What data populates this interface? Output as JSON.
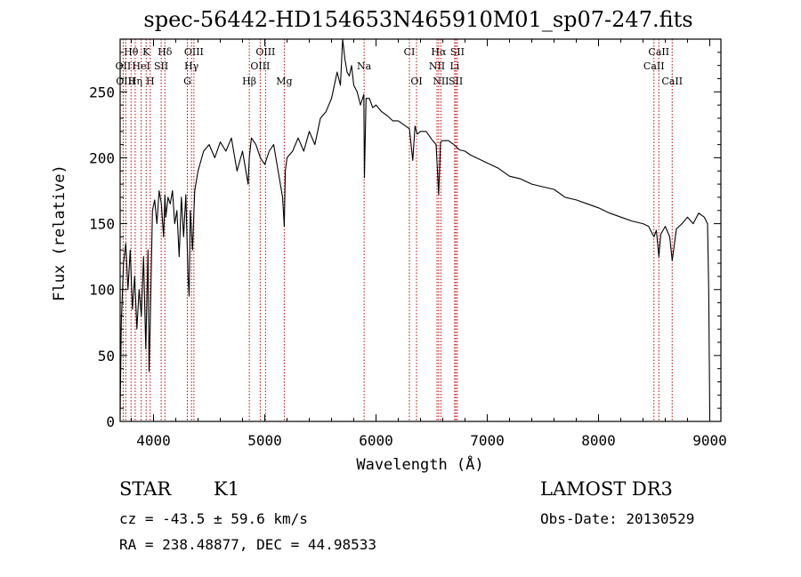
{
  "chart_data": {
    "type": "line",
    "title": "spec-56442-HD154653N465910M01_sp07-247.fits",
    "xlabel": "Wavelength (Å)",
    "ylabel": "Flux (relative)",
    "xlim": [
      3700,
      9100
    ],
    "ylim": [
      0,
      290
    ],
    "xticks": [
      4000,
      5000,
      6000,
      7000,
      8000,
      9000
    ],
    "yticks": [
      0,
      50,
      100,
      150,
      200,
      250
    ],
    "series": [
      {
        "x": [
          3700,
          3710,
          3730,
          3750,
          3770,
          3790,
          3810,
          3830,
          3850,
          3870,
          3890,
          3910,
          3930,
          3950,
          3960,
          3970,
          3990,
          4010,
          4030,
          4050,
          4070,
          4090,
          4102,
          4110,
          4130,
          4150,
          4170,
          4190,
          4210,
          4230,
          4250,
          4270,
          4290,
          4310,
          4320,
          4330,
          4350,
          4370,
          4400,
          4450,
          4500,
          4550,
          4600,
          4650,
          4700,
          4750,
          4800,
          4850,
          4861,
          4880,
          4920,
          4960,
          5000,
          5040,
          5080,
          5120,
          5160,
          5175,
          5185,
          5200,
          5250,
          5300,
          5350,
          5400,
          5450,
          5500,
          5550,
          5600,
          5650,
          5680,
          5700,
          5720,
          5740,
          5760,
          5780,
          5800,
          5830,
          5860,
          5890,
          5896,
          5910,
          5940,
          5970,
          6000,
          6050,
          6100,
          6150,
          6200,
          6250,
          6300,
          6330,
          6350,
          6370,
          6400,
          6450,
          6500,
          6540,
          6563,
          6580,
          6600,
          6650,
          6700,
          6750,
          6800,
          6850,
          6900,
          6950,
          7000,
          7100,
          7200,
          7300,
          7400,
          7500,
          7600,
          7700,
          7800,
          7900,
          8000,
          8100,
          8200,
          8300,
          8400,
          8450,
          8498,
          8520,
          8542,
          8560,
          8600,
          8640,
          8662,
          8700,
          8750,
          8800,
          8850,
          8900,
          8950,
          8980,
          8990,
          9000
        ],
        "y": [
          5,
          75,
          120,
          135,
          100,
          130,
          85,
          110,
          70,
          100,
          80,
          125,
          55,
          130,
          38,
          75,
          160,
          168,
          150,
          175,
          165,
          140,
          172,
          155,
          170,
          165,
          175,
          150,
          160,
          125,
          170,
          140,
          172,
          110,
          95,
          160,
          130,
          175,
          190,
          205,
          210,
          200,
          212,
          205,
          215,
          190,
          205,
          180,
          200,
          215,
          210,
          200,
          195,
          205,
          210,
          190,
          170,
          148,
          190,
          200,
          205,
          215,
          205,
          220,
          210,
          230,
          235,
          245,
          265,
          255,
          290,
          275,
          265,
          262,
          270,
          255,
          250,
          240,
          248,
          185,
          245,
          245,
          238,
          240,
          235,
          232,
          228,
          228,
          225,
          222,
          198,
          224,
          218,
          220,
          220,
          214,
          210,
          172,
          212,
          213,
          213,
          210,
          206,
          205,
          202,
          200,
          198,
          196,
          192,
          186,
          184,
          180,
          178,
          176,
          170,
          168,
          165,
          162,
          158,
          155,
          152,
          150,
          148,
          140,
          145,
          125,
          142,
          148,
          140,
          122,
          146,
          150,
          155,
          150,
          158,
          155,
          150,
          100,
          5
        ]
      }
    ],
    "lines_top": [
      {
        "label": "Hθ",
        "x": 3798
      },
      {
        "label": "K",
        "x": 3934
      },
      {
        "label": "Hδ",
        "x": 4102
      },
      {
        "label": "OIII",
        "x": 4363
      },
      {
        "label": "OIII",
        "x": 5007
      },
      {
        "label": "CI",
        "x": 6300
      },
      {
        "label": "Hα",
        "x": 6563
      },
      {
        "label": "SII",
        "x": 6731
      },
      {
        "label": "CaII",
        "x": 8542
      }
    ],
    "lines_mid": [
      {
        "label": "OII",
        "x": 3727
      },
      {
        "label": "HeI",
        "x": 3889
      },
      {
        "label": "SII",
        "x": 4069
      },
      {
        "label": "Hγ",
        "x": 4341
      },
      {
        "label": "OIII",
        "x": 4959
      },
      {
        "label": "Na",
        "x": 5893
      },
      {
        "label": "NII",
        "x": 6548
      },
      {
        "label": "Li",
        "x": 6707
      },
      {
        "label": "CaII",
        "x": 8498
      }
    ],
    "lines_low": [
      {
        "label": "OIII",
        "x": 3750
      },
      {
        "label": "Hη",
        "x": 3835
      },
      {
        "label": "H",
        "x": 3970
      },
      {
        "label": "G",
        "x": 4304
      },
      {
        "label": "Hβ",
        "x": 4861
      },
      {
        "label": "Mg",
        "x": 5175
      },
      {
        "label": "OI",
        "x": 6364
      },
      {
        "label": "NII",
        "x": 6583
      },
      {
        "label": "SII",
        "x": 6717
      },
      {
        "label": "CaII",
        "x": 8662
      }
    ]
  },
  "info": {
    "class_label": "STAR",
    "subclass": "K1",
    "survey": "LAMOST DR3",
    "cz_line": "cz = -43.5 ± 59.6 km/s",
    "obs_date": "Obs-Date: 20130529",
    "coords": "RA = 238.48877, DEC =  44.98533"
  }
}
